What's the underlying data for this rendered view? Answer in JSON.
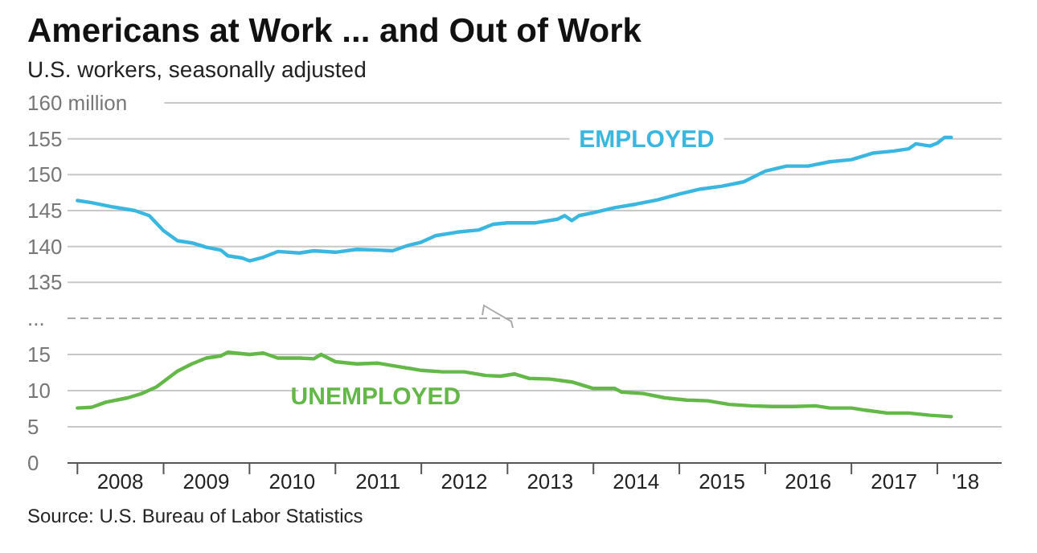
{
  "chart_data": [
    {
      "type": "line",
      "title": "Americans at Work ... and Out of Work",
      "subtitle": "U.S. workers, seasonally adjusted",
      "x": [
        "2008-01",
        "2008-03",
        "2008-06",
        "2008-09",
        "2008-11",
        "2009-01",
        "2009-03",
        "2009-05",
        "2009-07",
        "2009-09",
        "2009-10",
        "2009-12",
        "2010-01",
        "2010-03",
        "2010-05",
        "2010-08",
        "2010-10",
        "2011-01",
        "2011-04",
        "2011-07",
        "2011-09",
        "2011-11",
        "2012-01",
        "2012-03",
        "2012-06",
        "2012-09",
        "2012-11",
        "2013-01",
        "2013-05",
        "2013-08",
        "2013-09",
        "2013-10",
        "2013-11",
        "2014-01",
        "2014-04",
        "2014-07",
        "2014-10",
        "2015-01",
        "2015-04",
        "2015-07",
        "2015-10",
        "2016-01",
        "2016-04",
        "2016-07",
        "2016-10",
        "2017-01",
        "2017-04",
        "2017-07",
        "2017-09",
        "2017-10",
        "2017-12",
        "2018-01",
        "2018-02",
        "2018-03"
      ],
      "series": [
        {
          "name": "EMPLOYED",
          "color": "#3ab7e0",
          "values": [
            146.4,
            146.1,
            145.5,
            145.0,
            144.3,
            142.2,
            140.8,
            140.5,
            139.9,
            139.5,
            138.7,
            138.4,
            138.0,
            138.5,
            139.3,
            139.1,
            139.4,
            139.2,
            139.6,
            139.5,
            139.4,
            140.1,
            140.6,
            141.5,
            142.0,
            142.3,
            143.1,
            143.3,
            143.3,
            143.8,
            144.3,
            143.6,
            144.3,
            144.7,
            145.4,
            145.9,
            146.5,
            147.3,
            148.0,
            148.4,
            149.0,
            150.5,
            151.2,
            151.2,
            151.8,
            152.1,
            153.0,
            153.3,
            153.6,
            154.3,
            154.0,
            154.4,
            155.2,
            155.2
          ]
        }
      ],
      "xlim": [
        "2007-11-20",
        "2018-10-01"
      ],
      "ylim": [
        130,
        160
      ],
      "yticks": [
        {
          "value": 130,
          "label": "..."
        },
        135,
        140,
        145,
        150,
        {
          "value": 160,
          "label": "160 million"
        },
        155
      ],
      "grid": "y",
      "tick_labels": "y",
      "line_style": "solid",
      "marker": "none"
    },
    {
      "type": "line",
      "x": [
        "2008-01",
        "2008-03",
        "2008-05",
        "2008-08",
        "2008-10",
        "2008-12",
        "2009-03",
        "2009-05",
        "2009-07",
        "2009-09",
        "2009-10",
        "2010-01",
        "2010-03",
        "2010-05",
        "2010-08",
        "2010-10",
        "2010-11",
        "2011-01",
        "2011-04",
        "2011-07",
        "2011-10",
        "2012-01",
        "2012-04",
        "2012-07",
        "2012-10",
        "2012-12",
        "2013-02",
        "2013-04",
        "2013-07",
        "2013-10",
        "2014-01",
        "2014-04",
        "2014-05",
        "2014-08",
        "2014-11",
        "2015-02",
        "2015-05",
        "2015-08",
        "2015-11",
        "2016-02",
        "2016-05",
        "2016-08",
        "2016-10",
        "2017-01",
        "2017-03",
        "2017-06",
        "2017-09",
        "2017-12",
        "2018-03"
      ],
      "series": [
        {
          "name": "UNEMPLOYED",
          "color": "#63b847",
          "values": [
            7.6,
            7.7,
            8.4,
            9.0,
            9.6,
            10.5,
            12.7,
            13.7,
            14.5,
            14.8,
            15.3,
            15.0,
            15.2,
            14.5,
            14.5,
            14.4,
            15.0,
            14.0,
            13.7,
            13.8,
            13.3,
            12.8,
            12.6,
            12.6,
            12.1,
            12.0,
            12.3,
            11.7,
            11.6,
            11.2,
            10.3,
            10.3,
            9.8,
            9.6,
            9.0,
            8.7,
            8.6,
            8.1,
            7.9,
            7.8,
            7.8,
            7.9,
            7.6,
            7.6,
            7.3,
            6.9,
            6.9,
            6.6,
            6.4
          ]
        }
      ],
      "xlim": [
        "2007-11-20",
        "2018-10-01"
      ],
      "xticks": [
        {
          "value": "2008-01-01",
          "label": null
        },
        {
          "value": "2008-07-01",
          "label": "2008"
        },
        {
          "value": "2009-01-01",
          "label": null
        },
        {
          "value": "2009-07-01",
          "label": "2009"
        },
        {
          "value": "2010-01-01",
          "label": null
        },
        {
          "value": "2010-07-01",
          "label": "2010"
        },
        {
          "value": "2011-01-01",
          "label": null
        },
        {
          "value": "2011-07-01",
          "label": "2011"
        },
        {
          "value": "2012-01-01",
          "label": null
        },
        {
          "value": "2012-07-01",
          "label": "2012"
        },
        {
          "value": "2013-01-01",
          "label": null
        },
        {
          "value": "2013-07-01",
          "label": "2013"
        },
        {
          "value": "2014-01-01",
          "label": null
        },
        {
          "value": "2014-07-01",
          "label": "2014"
        },
        {
          "value": "2015-01-01",
          "label": null
        },
        {
          "value": "2015-07-01",
          "label": "2015"
        },
        {
          "value": "2016-01-01",
          "label": null
        },
        {
          "value": "2016-07-01",
          "label": "2016"
        },
        {
          "value": "2017-01-01",
          "label": null
        },
        {
          "value": "2017-07-01",
          "label": "2017"
        },
        {
          "value": "2018-01-01",
          "label": null
        },
        {
          "value": "2018-05-01",
          "label": "'18"
        }
      ],
      "ylim": [
        0,
        20
      ],
      "yticks": [
        0,
        5,
        10,
        15,
        {
          "value": 20,
          "label": null
        }
      ],
      "grid": "y",
      "line_style": "solid",
      "marker": "none",
      "annotations": [
        "Source: U.S. Bureau of Labor Statistics"
      ]
    }
  ]
}
